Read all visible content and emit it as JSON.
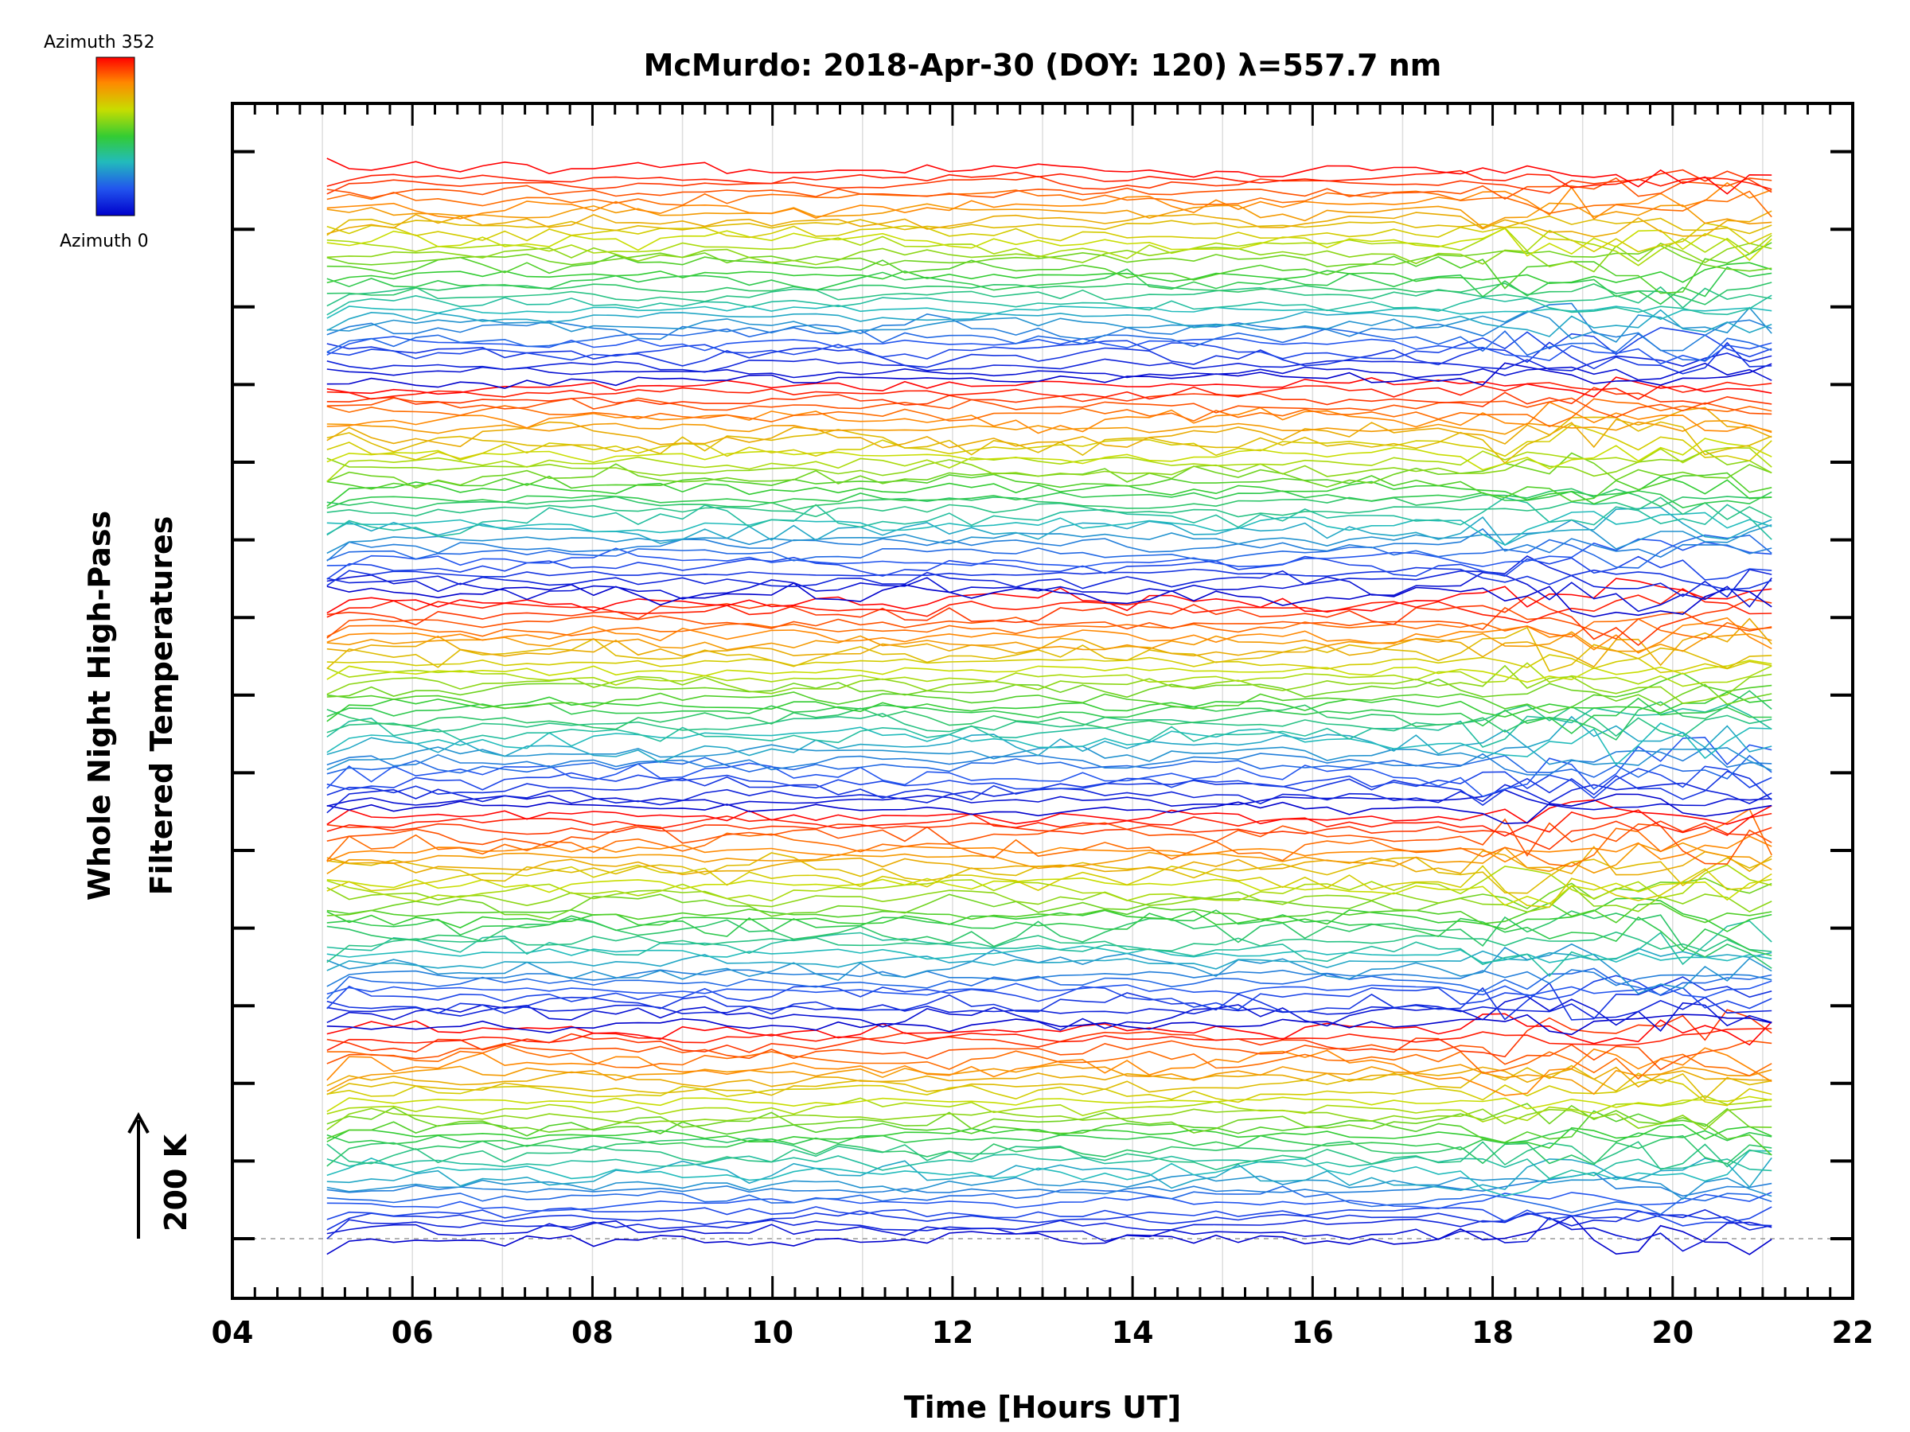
{
  "chart_data": {
    "type": "line",
    "title": "McMurdo: 2018-Apr-30 (DOY: 120) λ=557.7 nm",
    "xlabel": "Time [Hours UT]",
    "ylabel_line1": "Whole Night High-Pass",
    "ylabel_line2": "Filtered Temperatures",
    "xlim": [
      4,
      22
    ],
    "xticks": [
      "04",
      "06",
      "08",
      "10",
      "12",
      "14",
      "16",
      "18",
      "20",
      "22"
    ],
    "x_range_data": [
      5.05,
      21.1
    ],
    "scale_bar_label": "200 K",
    "colorbar": {
      "top_label": "Azimuth 352",
      "bottom_label": "Azimuth 0",
      "colors": [
        "#ff0000",
        "#ff8800",
        "#c8dd00",
        "#33cc33",
        "#22bbbb",
        "#2255ee",
        "#0000cc"
      ]
    },
    "stack": {
      "series_count": 155,
      "group_size": 31,
      "group_count": 5,
      "description": "Stacked azimuth traces, each offset vertically; azimuth 0 (blue) at bottom of each group to azimuth 352 (red) at top"
    }
  }
}
